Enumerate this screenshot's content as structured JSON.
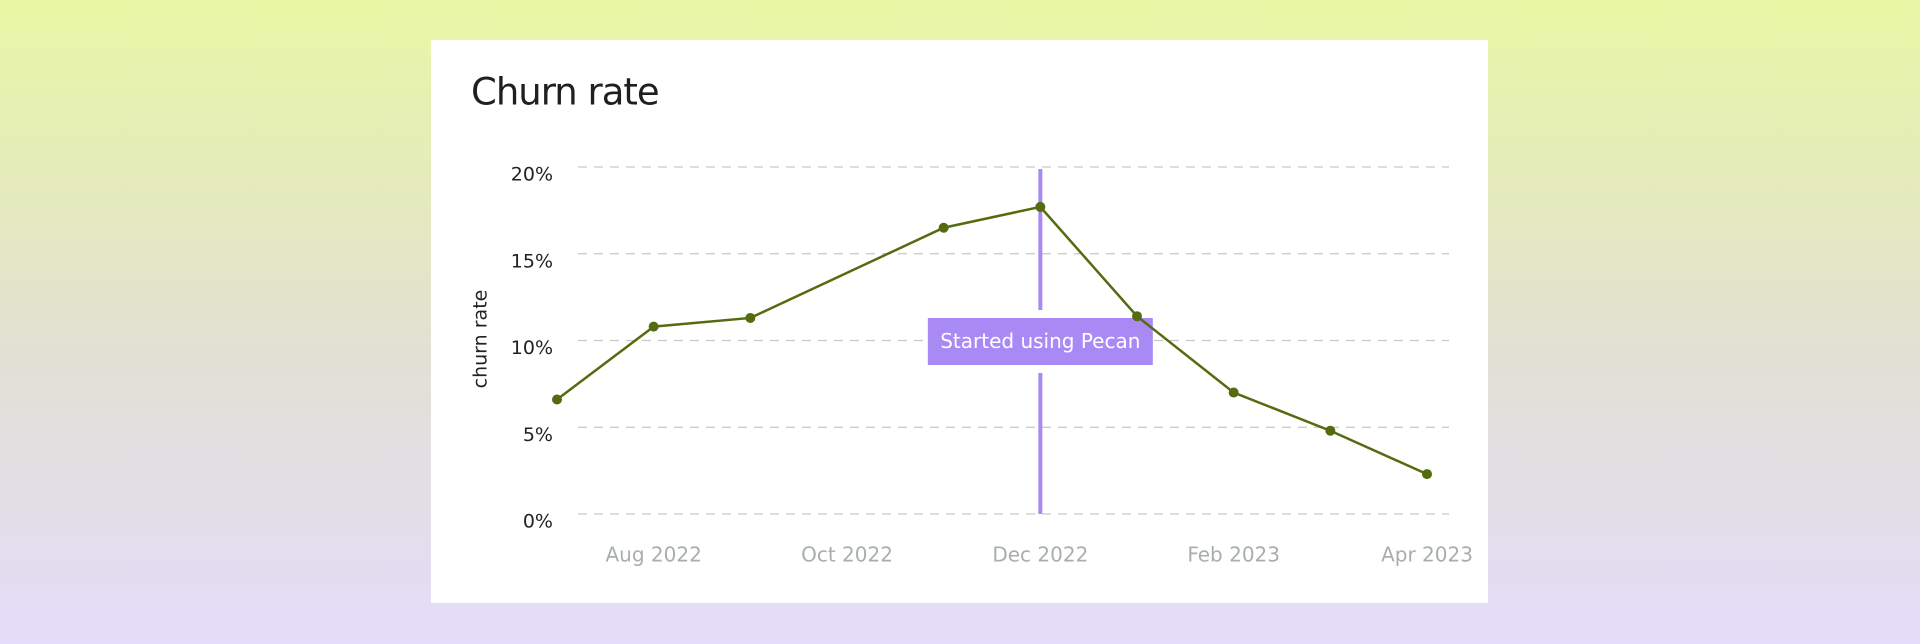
{
  "chart_data": {
    "type": "line",
    "title": "Churn rate",
    "y_label": "churn rate",
    "x": [
      "2022-07",
      "2022-08",
      "2022-09",
      "2022-11",
      "2022-12",
      "2023-01",
      "2023-02",
      "2023-03",
      "2023-04"
    ],
    "values": [
      6.6,
      10.8,
      11.3,
      16.5,
      17.7,
      11.4,
      7.0,
      4.8,
      2.3
    ],
    "color": "#556b0f",
    "xlim": [
      "2022-07",
      "2023-04"
    ],
    "xticks": [
      {
        "value": "2022-08",
        "label": "Aug 2022"
      },
      {
        "value": "2022-10",
        "label": "Oct 2022"
      },
      {
        "value": "2022-12",
        "label": "Dec 2022"
      },
      {
        "value": "2023-02",
        "label": "Feb 2023"
      },
      {
        "value": "2023-04",
        "label": "Apr 2023"
      }
    ],
    "ylim": [
      0,
      20
    ],
    "yticks": [
      {
        "value": 0,
        "label": "0%"
      },
      {
        "value": 5,
        "label": "5%"
      },
      {
        "value": 10,
        "label": "10%"
      },
      {
        "value": 15,
        "label": "15%"
      },
      {
        "value": 20,
        "label": "20%"
      }
    ],
    "grid": true,
    "annotation": {
      "x": "2022-12",
      "label": "Started using Pecan",
      "color": "#a98af5"
    }
  }
}
